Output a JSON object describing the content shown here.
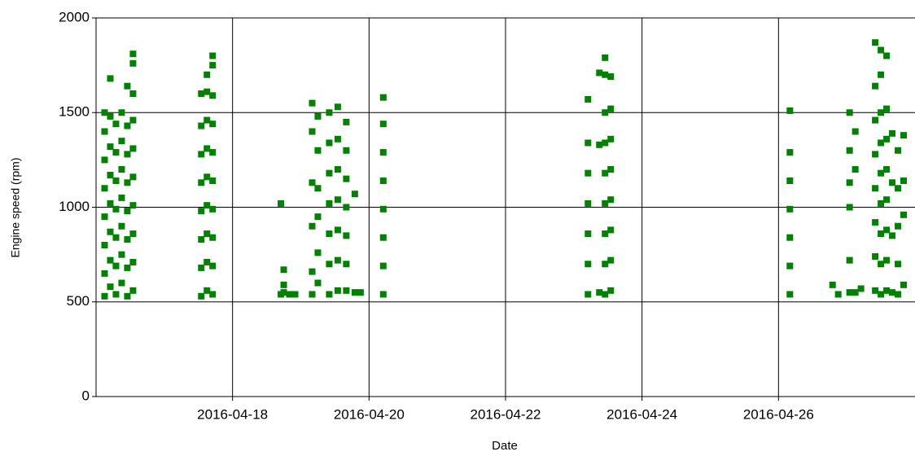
{
  "chart_data": {
    "type": "scatter",
    "x_label": "Date",
    "y_label": "Engine speed (rpm)",
    "xlim": [
      "2016-04-16",
      "2016-04-28"
    ],
    "xticks": [
      "2016-04-18",
      "2016-04-20",
      "2016-04-22",
      "2016-04-24",
      "2016-04-26"
    ],
    "ylim": [
      0,
      2000
    ],
    "yticks": [
      0,
      500,
      1000,
      1500,
      2000
    ],
    "grid": true,
    "series": [
      {
        "color": "#008000",
        "x": [
          "2016-04-16T03:00",
          "2016-04-16T03:00",
          "2016-04-16T03:00",
          "2016-04-16T03:00",
          "2016-04-16T03:00",
          "2016-04-16T03:00",
          "2016-04-16T03:00",
          "2016-04-16T03:00",
          "2016-04-16T05:00",
          "2016-04-16T05:00",
          "2016-04-16T05:00",
          "2016-04-16T05:00",
          "2016-04-16T05:00",
          "2016-04-16T05:00",
          "2016-04-16T05:00",
          "2016-04-16T05:00",
          "2016-04-16T07:00",
          "2016-04-16T07:00",
          "2016-04-16T07:00",
          "2016-04-16T07:00",
          "2016-04-16T07:00",
          "2016-04-16T07:00",
          "2016-04-16T07:00",
          "2016-04-16T09:00",
          "2016-04-16T09:00",
          "2016-04-16T09:00",
          "2016-04-16T09:00",
          "2016-04-16T09:00",
          "2016-04-16T09:00",
          "2016-04-16T09:00",
          "2016-04-16T11:00",
          "2016-04-16T11:00",
          "2016-04-16T11:00",
          "2016-04-16T11:00",
          "2016-04-16T11:00",
          "2016-04-16T11:00",
          "2016-04-16T11:00",
          "2016-04-16T11:00",
          "2016-04-16T13:00",
          "2016-04-16T13:00",
          "2016-04-16T13:00",
          "2016-04-16T13:00",
          "2016-04-16T13:00",
          "2016-04-16T13:00",
          "2016-04-16T13:00",
          "2016-04-16T13:00",
          "2016-04-16T13:00",
          "2016-04-16T13:00",
          "2016-04-17T13:00",
          "2016-04-17T13:00",
          "2016-04-17T13:00",
          "2016-04-17T13:00",
          "2016-04-17T13:00",
          "2016-04-17T13:00",
          "2016-04-17T13:00",
          "2016-04-17T13:00",
          "2016-04-17T15:00",
          "2016-04-17T15:00",
          "2016-04-17T15:00",
          "2016-04-17T15:00",
          "2016-04-17T15:00",
          "2016-04-17T15:00",
          "2016-04-17T15:00",
          "2016-04-17T15:00",
          "2016-04-17T15:00",
          "2016-04-17T17:00",
          "2016-04-17T17:00",
          "2016-04-17T17:00",
          "2016-04-17T17:00",
          "2016-04-17T17:00",
          "2016-04-17T17:00",
          "2016-04-17T17:00",
          "2016-04-17T17:00",
          "2016-04-17T17:00",
          "2016-04-17T17:00",
          "2016-04-18T17:00",
          "2016-04-18T17:00",
          "2016-04-18T18:00",
          "2016-04-18T18:00",
          "2016-04-18T18:00",
          "2016-04-18T20:00",
          "2016-04-18T22:00",
          "2016-04-19T04:00",
          "2016-04-19T04:00",
          "2016-04-19T04:00",
          "2016-04-19T04:00",
          "2016-04-19T04:00",
          "2016-04-19T04:00",
          "2016-04-19T06:00",
          "2016-04-19T06:00",
          "2016-04-19T06:00",
          "2016-04-19T06:00",
          "2016-04-19T06:00",
          "2016-04-19T06:00",
          "2016-04-19T10:00",
          "2016-04-19T10:00",
          "2016-04-19T10:00",
          "2016-04-19T10:00",
          "2016-04-19T10:00",
          "2016-04-19T10:00",
          "2016-04-19T10:00",
          "2016-04-19T13:00",
          "2016-04-19T13:00",
          "2016-04-19T13:00",
          "2016-04-19T13:00",
          "2016-04-19T13:00",
          "2016-04-19T13:00",
          "2016-04-19T13:00",
          "2016-04-19T16:00",
          "2016-04-19T16:00",
          "2016-04-19T16:00",
          "2016-04-19T16:00",
          "2016-04-19T16:00",
          "2016-04-19T16:00",
          "2016-04-19T16:00",
          "2016-04-19T19:00",
          "2016-04-19T19:00",
          "2016-04-19T21:00",
          "2016-04-20T05:00",
          "2016-04-20T05:00",
          "2016-04-20T05:00",
          "2016-04-20T05:00",
          "2016-04-20T05:00",
          "2016-04-20T05:00",
          "2016-04-20T05:00",
          "2016-04-20T05:00",
          "2016-04-23T05:00",
          "2016-04-23T05:00",
          "2016-04-23T05:00",
          "2016-04-23T05:00",
          "2016-04-23T05:00",
          "2016-04-23T05:00",
          "2016-04-23T05:00",
          "2016-04-23T09:00",
          "2016-04-23T09:00",
          "2016-04-23T09:00",
          "2016-04-23T11:00",
          "2016-04-23T11:00",
          "2016-04-23T11:00",
          "2016-04-23T11:00",
          "2016-04-23T11:00",
          "2016-04-23T11:00",
          "2016-04-23T11:00",
          "2016-04-23T11:00",
          "2016-04-23T11:00",
          "2016-04-23T13:00",
          "2016-04-23T13:00",
          "2016-04-23T13:00",
          "2016-04-23T13:00",
          "2016-04-23T13:00",
          "2016-04-23T13:00",
          "2016-04-23T13:00",
          "2016-04-23T13:00",
          "2016-04-26T04:00",
          "2016-04-26T04:00",
          "2016-04-26T04:00",
          "2016-04-26T04:00",
          "2016-04-26T04:00",
          "2016-04-26T04:00",
          "2016-04-26T04:00",
          "2016-04-26T19:00",
          "2016-04-26T21:00",
          "2016-04-27T01:00",
          "2016-04-27T01:00",
          "2016-04-27T01:00",
          "2016-04-27T01:00",
          "2016-04-27T01:00",
          "2016-04-27T01:00",
          "2016-04-27T03:00",
          "2016-04-27T03:00",
          "2016-04-27T03:00",
          "2016-04-27T05:00",
          "2016-04-27T10:00",
          "2016-04-27T10:00",
          "2016-04-27T10:00",
          "2016-04-27T10:00",
          "2016-04-27T10:00",
          "2016-04-27T10:00",
          "2016-04-27T10:00",
          "2016-04-27T10:00",
          "2016-04-27T12:00",
          "2016-04-27T12:00",
          "2016-04-27T12:00",
          "2016-04-27T12:00",
          "2016-04-27T12:00",
          "2016-04-27T12:00",
          "2016-04-27T12:00",
          "2016-04-27T12:00",
          "2016-04-27T12:00",
          "2016-04-27T14:00",
          "2016-04-27T14:00",
          "2016-04-27T14:00",
          "2016-04-27T14:00",
          "2016-04-27T14:00",
          "2016-04-27T14:00",
          "2016-04-27T14:00",
          "2016-04-27T14:00",
          "2016-04-27T16:00",
          "2016-04-27T16:00",
          "2016-04-27T16:00",
          "2016-04-27T16:00",
          "2016-04-27T18:00",
          "2016-04-27T18:00",
          "2016-04-27T18:00",
          "2016-04-27T18:00",
          "2016-04-27T18:00",
          "2016-04-27T20:00",
          "2016-04-27T20:00",
          "2016-04-27T20:00",
          "2016-04-27T20:00"
        ],
        "values": [
          530,
          650,
          800,
          950,
          1100,
          1250,
          1400,
          1500,
          580,
          720,
          870,
          1020,
          1170,
          1320,
          1480,
          1680,
          540,
          690,
          840,
          990,
          1140,
          1290,
          1440,
          600,
          750,
          900,
          1050,
          1200,
          1350,
          1500,
          530,
          680,
          830,
          980,
          1130,
          1280,
          1430,
          1640,
          560,
          710,
          860,
          1010,
          1160,
          1310,
          1460,
          1600,
          1760,
          1810,
          530,
          680,
          830,
          980,
          1130,
          1280,
          1430,
          1600,
          560,
          710,
          860,
          1010,
          1160,
          1310,
          1460,
          1610,
          1700,
          540,
          690,
          840,
          990,
          1140,
          1290,
          1440,
          1590,
          1750,
          1800,
          540,
          1020,
          550,
          670,
          590,
          540,
          540,
          540,
          660,
          900,
          1130,
          1400,
          1550,
          600,
          760,
          950,
          1100,
          1300,
          1480,
          540,
          700,
          860,
          1020,
          1180,
          1340,
          1500,
          560,
          720,
          880,
          1040,
          1200,
          1360,
          1530,
          560,
          700,
          850,
          1000,
          1150,
          1300,
          1450,
          1070,
          550,
          550,
          540,
          690,
          840,
          990,
          1140,
          1290,
          1440,
          1580,
          540,
          700,
          860,
          1020,
          1180,
          1340,
          1570,
          550,
          1330,
          1710,
          540,
          700,
          860,
          1020,
          1180,
          1340,
          1500,
          1700,
          1790,
          560,
          720,
          880,
          1040,
          1200,
          1360,
          1520,
          1690,
          540,
          690,
          840,
          990,
          1140,
          1290,
          1510,
          590,
          540,
          550,
          720,
          1000,
          1130,
          1300,
          1500,
          550,
          1200,
          1400,
          570,
          560,
          740,
          920,
          1100,
          1280,
          1460,
          1640,
          1870,
          540,
          700,
          860,
          1020,
          1180,
          1340,
          1500,
          1700,
          1830,
          560,
          720,
          880,
          1040,
          1200,
          1360,
          1520,
          1800,
          550,
          850,
          1130,
          1390,
          540,
          700,
          900,
          1100,
          1300,
          590,
          960,
          1140,
          1380
        ]
      }
    ]
  }
}
